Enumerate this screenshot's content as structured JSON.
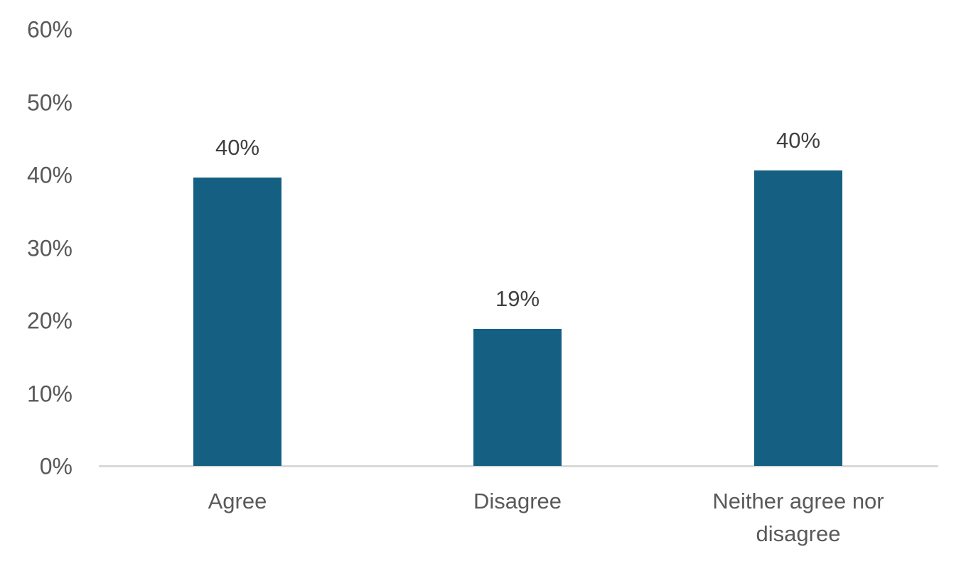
{
  "chart_data": {
    "type": "bar",
    "categories": [
      "Agree",
      "Disagree",
      "Neither agree nor disagree"
    ],
    "values": [
      40,
      19,
      40
    ],
    "data_labels": [
      "40%",
      "19%",
      "40%"
    ],
    "title": "",
    "xlabel": "",
    "ylabel": "",
    "ylim": [
      0,
      60
    ],
    "ytick_step": 10,
    "ytick_labels": [
      "0%",
      "10%",
      "20%",
      "30%",
      "40%",
      "50%",
      "60%"
    ],
    "grid": false,
    "legend": false,
    "layout_hints": {
      "display_heights_pct": [
        39.6,
        18.8,
        40.6
      ],
      "bar_color": "#156082",
      "axis_text_color": "#595959",
      "data_label_color": "#404040",
      "axis_line_color": "#D9D9D9",
      "background": "#FFFFFF"
    }
  }
}
